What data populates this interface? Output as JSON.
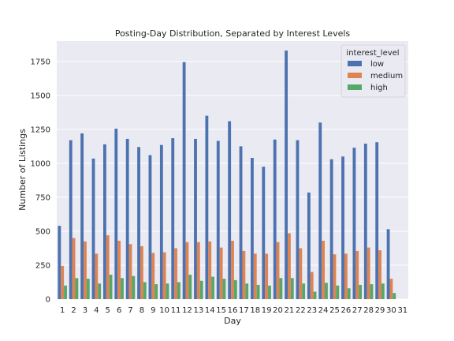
{
  "chart_data": {
    "type": "bar",
    "title": "Posting-Day Distribution, Separated by Interest Levels",
    "xlabel": "Day",
    "ylabel": "Number of Listings",
    "ylim": [
      0,
      1900
    ],
    "yticks": [
      0,
      250,
      500,
      750,
      1000,
      1250,
      1500,
      1750
    ],
    "grid": true,
    "legend": {
      "title": "interest_level",
      "position": "top-right"
    },
    "categories": [
      "1",
      "2",
      "3",
      "4",
      "5",
      "6",
      "7",
      "8",
      "9",
      "10",
      "11",
      "12",
      "13",
      "14",
      "15",
      "16",
      "17",
      "18",
      "19",
      "20",
      "21",
      "22",
      "23",
      "24",
      "25",
      "26",
      "27",
      "28",
      "29",
      "30",
      "31"
    ],
    "series": [
      {
        "name": "low",
        "color": "#4c72b0",
        "values": [
          540,
          1170,
          1220,
          1035,
          1140,
          1255,
          1180,
          1120,
          1060,
          1135,
          1185,
          1745,
          1180,
          1350,
          1165,
          1310,
          1125,
          1040,
          975,
          1175,
          1830,
          1170,
          785,
          1300,
          1030,
          1050,
          1115,
          1145,
          1155,
          515,
          0
        ]
      },
      {
        "name": "medium",
        "color": "#dd8452",
        "values": [
          245,
          450,
          425,
          335,
          470,
          430,
          405,
          390,
          340,
          345,
          375,
          420,
          420,
          425,
          380,
          430,
          355,
          335,
          335,
          420,
          485,
          375,
          200,
          430,
          330,
          335,
          355,
          380,
          360,
          150,
          0
        ]
      },
      {
        "name": "high",
        "color": "#55a868",
        "values": [
          100,
          155,
          150,
          115,
          180,
          155,
          170,
          125,
          110,
          115,
          125,
          180,
          135,
          165,
          150,
          140,
          115,
          105,
          100,
          155,
          155,
          115,
          55,
          120,
          100,
          80,
          105,
          110,
          115,
          45,
          0
        ]
      }
    ]
  }
}
